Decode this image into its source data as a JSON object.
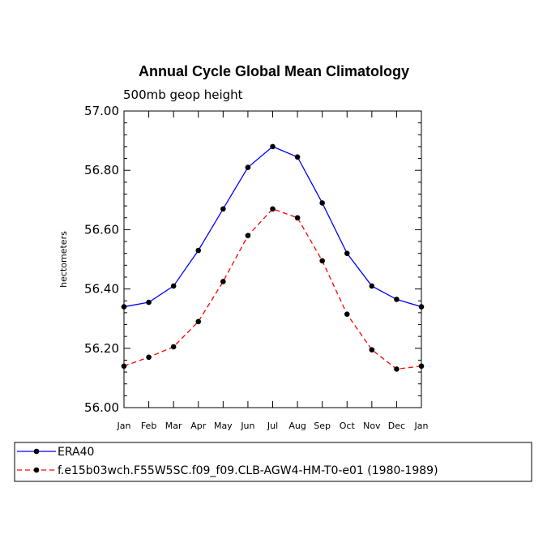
{
  "chart_data": {
    "type": "line",
    "title": "Annual Cycle Global Mean Climatology",
    "subtitle": "500mb geop height",
    "xlabel": "",
    "ylabel": "hectometers",
    "categories": [
      "Jan",
      "Feb",
      "Mar",
      "Apr",
      "May",
      "Jun",
      "Jul",
      "Aug",
      "Sep",
      "Oct",
      "Nov",
      "Dec",
      "Jan"
    ],
    "yticks": [
      "56.00",
      "56.20",
      "56.40",
      "56.60",
      "56.80",
      "57.00"
    ],
    "ylim": [
      56.0,
      57.0
    ],
    "grid": false,
    "legend_position": "bottom",
    "series": [
      {
        "name": "ERA40",
        "color": "#0000ff",
        "line_style": "solid",
        "values": [
          56.34,
          56.355,
          56.41,
          56.53,
          56.67,
          56.81,
          56.88,
          56.845,
          56.69,
          56.52,
          56.41,
          56.365,
          56.34
        ]
      },
      {
        "name": "f.e15b03wch.F55W5SC.f09_f09.CLB-AGW4-HM-T0-e01 (1980-1989)",
        "color": "#ff0000",
        "line_style": "dashed",
        "values": [
          56.14,
          56.17,
          56.205,
          56.29,
          56.425,
          56.58,
          56.67,
          56.64,
          56.495,
          56.315,
          56.195,
          56.13,
          56.14
        ]
      }
    ]
  }
}
